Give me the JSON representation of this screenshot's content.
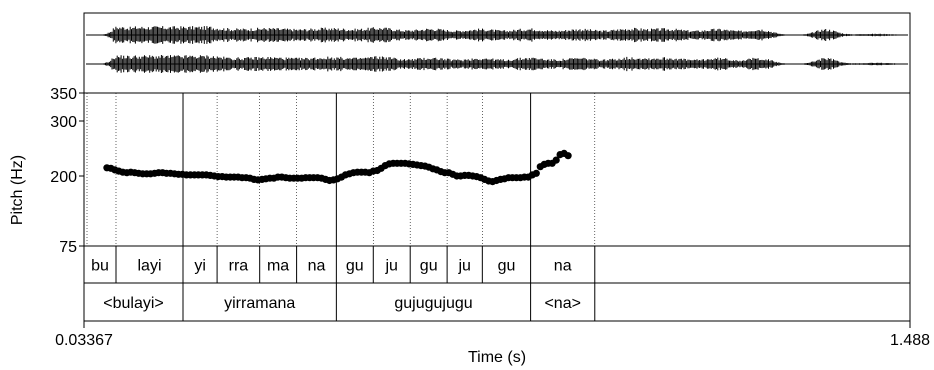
{
  "chart_data": {
    "type": "scatter",
    "xlabel": "Time (s)",
    "ylabel": "Pitch (Hz)",
    "x_start_label": "0.03367",
    "x_end_label": "1.488",
    "xlim": [
      0.03367,
      1.488
    ],
    "y_ticks": [
      "350",
      "300",
      "200",
      "75"
    ],
    "y_scale": "nonlinear",
    "pitch_points": [
      [
        0.074,
        215
      ],
      [
        0.081,
        214
      ],
      [
        0.088,
        211
      ],
      [
        0.095,
        209
      ],
      [
        0.102,
        207
      ],
      [
        0.109,
        206
      ],
      [
        0.116,
        207
      ],
      [
        0.123,
        206
      ],
      [
        0.13,
        205
      ],
      [
        0.137,
        204
      ],
      [
        0.144,
        204
      ],
      [
        0.151,
        204
      ],
      [
        0.158,
        205
      ],
      [
        0.165,
        206
      ],
      [
        0.172,
        206
      ],
      [
        0.179,
        205
      ],
      [
        0.186,
        205
      ],
      [
        0.193,
        204
      ],
      [
        0.2,
        203
      ],
      [
        0.207,
        203
      ],
      [
        0.214,
        202
      ],
      [
        0.221,
        202
      ],
      [
        0.228,
        202
      ],
      [
        0.235,
        202
      ],
      [
        0.242,
        202
      ],
      [
        0.249,
        202
      ],
      [
        0.256,
        201
      ],
      [
        0.263,
        200
      ],
      [
        0.27,
        199
      ],
      [
        0.277,
        199
      ],
      [
        0.284,
        198
      ],
      [
        0.291,
        198
      ],
      [
        0.298,
        198
      ],
      [
        0.305,
        198
      ],
      [
        0.312,
        197
      ],
      [
        0.319,
        197
      ],
      [
        0.326,
        196
      ],
      [
        0.333,
        194
      ],
      [
        0.34,
        193
      ],
      [
        0.347,
        194
      ],
      [
        0.354,
        195
      ],
      [
        0.361,
        196
      ],
      [
        0.368,
        196
      ],
      [
        0.375,
        198
      ],
      [
        0.382,
        198
      ],
      [
        0.389,
        197
      ],
      [
        0.396,
        196
      ],
      [
        0.403,
        196
      ],
      [
        0.41,
        196
      ],
      [
        0.417,
        196
      ],
      [
        0.424,
        197
      ],
      [
        0.431,
        197
      ],
      [
        0.438,
        197
      ],
      [
        0.445,
        197
      ],
      [
        0.452,
        196
      ],
      [
        0.459,
        194
      ],
      [
        0.466,
        192
      ],
      [
        0.473,
        193
      ],
      [
        0.48,
        195
      ],
      [
        0.487,
        198
      ],
      [
        0.494,
        202
      ],
      [
        0.501,
        204
      ],
      [
        0.508,
        206
      ],
      [
        0.515,
        207
      ],
      [
        0.522,
        207
      ],
      [
        0.529,
        207
      ],
      [
        0.536,
        206
      ],
      [
        0.543,
        209
      ],
      [
        0.55,
        210
      ],
      [
        0.557,
        214
      ],
      [
        0.564,
        219
      ],
      [
        0.571,
        222
      ],
      [
        0.578,
        223
      ],
      [
        0.585,
        223
      ],
      [
        0.592,
        223
      ],
      [
        0.599,
        223
      ],
      [
        0.606,
        222
      ],
      [
        0.613,
        221
      ],
      [
        0.62,
        220
      ],
      [
        0.627,
        219
      ],
      [
        0.634,
        218
      ],
      [
        0.641,
        216
      ],
      [
        0.648,
        213
      ],
      [
        0.655,
        211
      ],
      [
        0.662,
        208
      ],
      [
        0.669,
        206
      ],
      [
        0.676,
        206
      ],
      [
        0.683,
        203
      ],
      [
        0.69,
        200
      ],
      [
        0.697,
        200
      ],
      [
        0.704,
        201
      ],
      [
        0.711,
        201
      ],
      [
        0.718,
        200
      ],
      [
        0.725,
        199
      ],
      [
        0.732,
        197
      ],
      [
        0.739,
        194
      ],
      [
        0.746,
        191
      ],
      [
        0.753,
        190
      ],
      [
        0.76,
        192
      ],
      [
        0.767,
        194
      ],
      [
        0.774,
        195
      ],
      [
        0.781,
        197
      ],
      [
        0.788,
        197
      ],
      [
        0.795,
        197
      ],
      [
        0.802,
        197
      ],
      [
        0.809,
        198
      ],
      [
        0.816,
        198
      ],
      [
        0.823,
        202
      ],
      [
        0.83,
        205
      ],
      [
        0.837,
        217
      ],
      [
        0.844,
        221
      ],
      [
        0.851,
        223
      ],
      [
        0.858,
        223
      ],
      [
        0.865,
        229
      ],
      [
        0.872,
        239
      ],
      [
        0.879,
        241
      ],
      [
        0.886,
        237
      ]
    ]
  },
  "syllable_tier": [
    {
      "label": "bu",
      "start": 0.03367,
      "end": 0.09
    },
    {
      "label": "layi",
      "start": 0.09,
      "end": 0.208
    },
    {
      "label": "yi",
      "start": 0.208,
      "end": 0.268
    },
    {
      "label": "rra",
      "start": 0.268,
      "end": 0.343
    },
    {
      "label": "ma",
      "start": 0.343,
      "end": 0.408
    },
    {
      "label": "na",
      "start": 0.408,
      "end": 0.478
    },
    {
      "label": "gu",
      "start": 0.478,
      "end": 0.543
    },
    {
      "label": "ju",
      "start": 0.543,
      "end": 0.608
    },
    {
      "label": "gu",
      "start": 0.608,
      "end": 0.673
    },
    {
      "label": "ju",
      "start": 0.673,
      "end": 0.735
    },
    {
      "label": "gu",
      "start": 0.735,
      "end": 0.82
    },
    {
      "label": "na",
      "start": 0.82,
      "end": 0.933
    }
  ],
  "word_tier": [
    {
      "label": "<bulayi>",
      "start": 0.03367,
      "end": 0.208
    },
    {
      "label": "yirramana",
      "start": 0.208,
      "end": 0.478
    },
    {
      "label": "gujugujugu",
      "start": 0.478,
      "end": 0.82
    },
    {
      "label": "<na>",
      "start": 0.82,
      "end": 0.933
    }
  ]
}
